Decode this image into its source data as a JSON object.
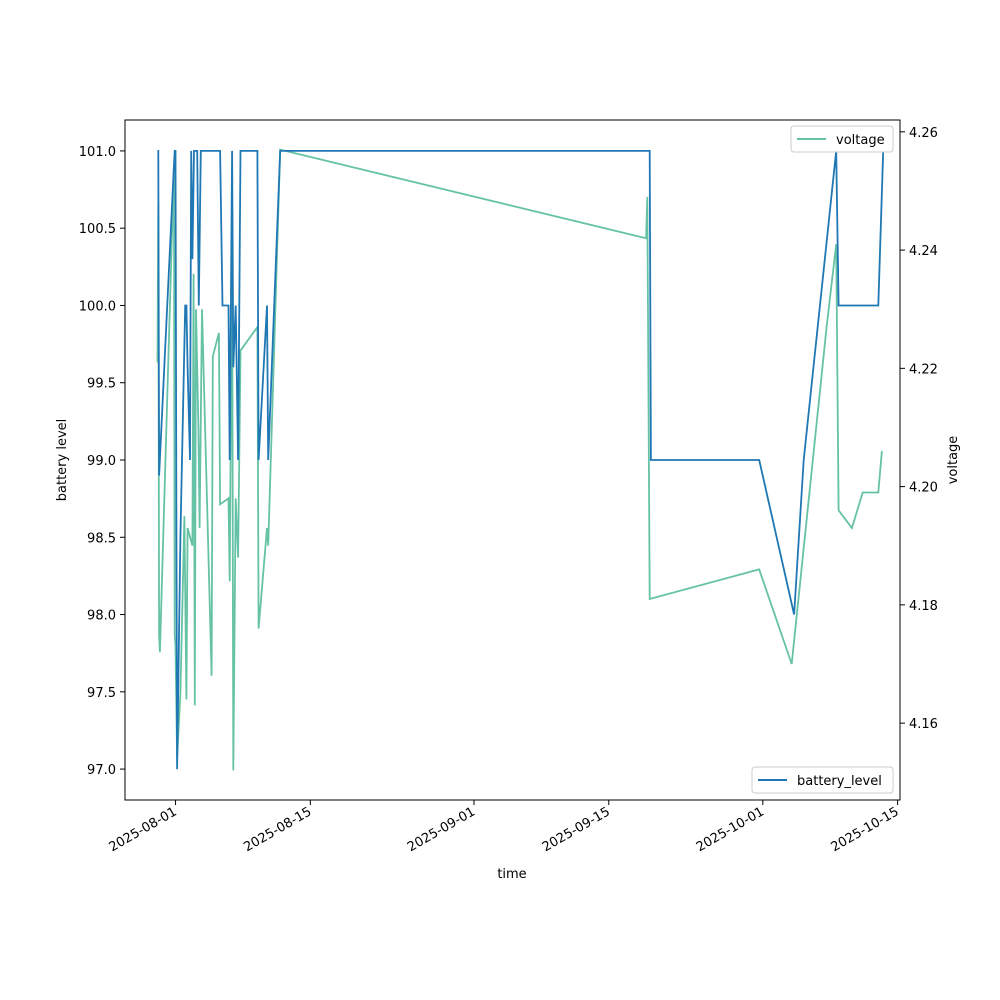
{
  "chart_data": {
    "type": "line",
    "xlabel": "time",
    "ylabel_left": "battery level",
    "ylabel_right": "voltage",
    "x_ticks": [
      "2025-08-01",
      "2025-08-15",
      "2025-09-01",
      "2025-09-15",
      "2025-10-01",
      "2025-10-15"
    ],
    "x_range": [
      "2025-07-26T18:00",
      "2025-10-15T06:00"
    ],
    "y_left_ticks": [
      "97.0",
      "97.5",
      "98.0",
      "98.5",
      "99.0",
      "99.5",
      "100.0",
      "100.5",
      "101.0"
    ],
    "y_left_range": [
      96.8,
      101.2
    ],
    "y_right_ticks": [
      "4.16",
      "4.18",
      "4.20",
      "4.22",
      "4.24",
      "4.26"
    ],
    "y_right_range": [
      4.147,
      4.262
    ],
    "grid": false,
    "series": [
      {
        "name": "battery_level",
        "axis": "left",
        "color": "#1f77b4",
        "legend_position": "lower-right",
        "points": [
          [
            "2025-07-30T03:00",
            101
          ],
          [
            "2025-07-30T05:00",
            101
          ],
          [
            "2025-07-30T07:00",
            98.9
          ],
          [
            "2025-07-31T20:00",
            100.9
          ],
          [
            "2025-07-31T22:00",
            101
          ],
          [
            "2025-08-01T00:00",
            101
          ],
          [
            "2025-08-01T02:00",
            98.8
          ],
          [
            "2025-08-01T04:00",
            97
          ],
          [
            "2025-08-01T12:00",
            98.5
          ],
          [
            "2025-08-02T00:00",
            100
          ],
          [
            "2025-08-02T03:00",
            100
          ],
          [
            "2025-08-02T06:00",
            99.6
          ],
          [
            "2025-08-02T12:00",
            99
          ],
          [
            "2025-08-02T15:00",
            101
          ],
          [
            "2025-08-02T18:00",
            100.3
          ],
          [
            "2025-08-02T22:00",
            101
          ],
          [
            "2025-08-03T06:00",
            101
          ],
          [
            "2025-08-03T10:00",
            100
          ],
          [
            "2025-08-03T15:00",
            101
          ],
          [
            "2025-08-04T14:00",
            101
          ],
          [
            "2025-08-05T06:00",
            101
          ],
          [
            "2025-08-05T15:00",
            101
          ],
          [
            "2025-08-05T21:00",
            100
          ],
          [
            "2025-08-06T12:00",
            100
          ],
          [
            "2025-08-06T15:00",
            99
          ],
          [
            "2025-08-06T21:00",
            101
          ],
          [
            "2025-08-07T00:00",
            99.6
          ],
          [
            "2025-08-07T06:00",
            100
          ],
          [
            "2025-08-07T12:00",
            99
          ],
          [
            "2025-08-07T18:00",
            101
          ],
          [
            "2025-08-09T12:00",
            101
          ],
          [
            "2025-08-09T15:00",
            99
          ],
          [
            "2025-08-10T12:00",
            100
          ],
          [
            "2025-08-10T15:00",
            99
          ],
          [
            "2025-08-11T21:00",
            101
          ],
          [
            "2025-09-19T06:00",
            101
          ],
          [
            "2025-09-19T09:00",
            99
          ],
          [
            "2025-09-30T15:00",
            99
          ],
          [
            "2025-10-04T06:00",
            98
          ],
          [
            "2025-10-05T06:00",
            99
          ],
          [
            "2025-10-08T15:00",
            101
          ],
          [
            "2025-10-08T21:00",
            100
          ],
          [
            "2025-10-13T00:00",
            100
          ],
          [
            "2025-10-13T12:00",
            101
          ]
        ]
      },
      {
        "name": "voltage",
        "axis": "right",
        "color": "#66c2a5",
        "legend_position": "upper-right",
        "points": [
          [
            "2025-07-30T03:00",
            4.221
          ],
          [
            "2025-07-30T05:00",
            4.248
          ],
          [
            "2025-07-30T07:00",
            4.175
          ],
          [
            "2025-07-30T09:00",
            4.172
          ],
          [
            "2025-07-31T20:00",
            4.254
          ],
          [
            "2025-07-31T22:00",
            4.175
          ],
          [
            "2025-08-01T00:00",
            4.173
          ],
          [
            "2025-08-01T04:00",
            4.154
          ],
          [
            "2025-08-01T12:00",
            4.165
          ],
          [
            "2025-08-01T22:00",
            4.195
          ],
          [
            "2025-08-02T03:00",
            4.164
          ],
          [
            "2025-08-02T06:00",
            4.193
          ],
          [
            "2025-08-02T18:00",
            4.19
          ],
          [
            "2025-08-02T21:00",
            4.236
          ],
          [
            "2025-08-03T00:00",
            4.163
          ],
          [
            "2025-08-03T03:00",
            4.23
          ],
          [
            "2025-08-03T09:00",
            4.21
          ],
          [
            "2025-08-03T12:00",
            4.193
          ],
          [
            "2025-08-03T18:00",
            4.23
          ],
          [
            "2025-08-04T18:00",
            4.168
          ],
          [
            "2025-08-04T21:00",
            4.222
          ],
          [
            "2025-08-05T12:00",
            4.226
          ],
          [
            "2025-08-05T15:00",
            4.197
          ],
          [
            "2025-08-06T12:00",
            4.198
          ],
          [
            "2025-08-06T15:00",
            4.184
          ],
          [
            "2025-08-06T21:00",
            4.242
          ],
          [
            "2025-08-07T00:00",
            4.152
          ],
          [
            "2025-08-07T06:00",
            4.198
          ],
          [
            "2025-08-07T12:00",
            4.188
          ],
          [
            "2025-08-07T18:00",
            4.223
          ],
          [
            "2025-08-09T12:00",
            4.227
          ],
          [
            "2025-08-09T15:00",
            4.176
          ],
          [
            "2025-08-10T12:00",
            4.193
          ],
          [
            "2025-08-10T15:00",
            4.19
          ],
          [
            "2025-08-11T21:00",
            4.257
          ],
          [
            "2025-09-18T21:00",
            4.242
          ],
          [
            "2025-09-19T00:00",
            4.249
          ],
          [
            "2025-09-19T06:00",
            4.181
          ],
          [
            "2025-09-30T15:00",
            4.186
          ],
          [
            "2025-10-04T00:00",
            4.17
          ],
          [
            "2025-10-07T15:00",
            4.227
          ],
          [
            "2025-10-08T15:00",
            4.241
          ],
          [
            "2025-10-08T21:00",
            4.196
          ],
          [
            "2025-10-10T06:00",
            4.193
          ],
          [
            "2025-10-11T09:00",
            4.199
          ],
          [
            "2025-10-13T00:00",
            4.199
          ],
          [
            "2025-10-13T09:00",
            4.206
          ]
        ]
      }
    ]
  }
}
